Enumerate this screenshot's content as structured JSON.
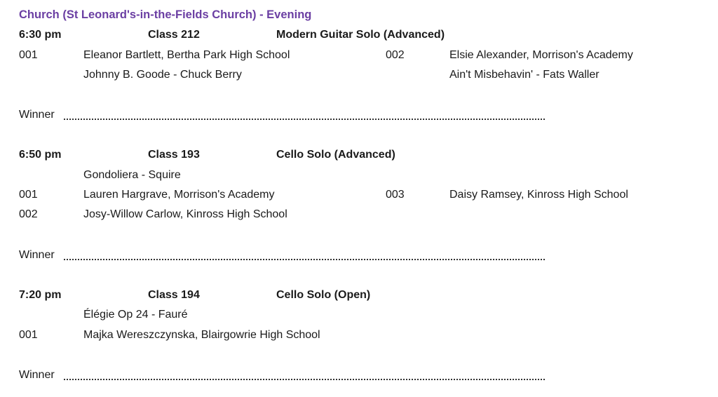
{
  "heading": "Church (St Leonard's-in-the-Fields Church) - Evening",
  "accent_color": "#6b3fa3",
  "winner_label": "Winner",
  "sessions": [
    {
      "time": "6:30 pm",
      "class": "Class 212",
      "title": "Modern Guitar Solo (Advanced)",
      "entries": [
        {
          "num": "001",
          "name": "Eleanor Bartlett, Bertha Park High School",
          "piece": "Johnny B. Goode  -  Chuck Berry"
        },
        {
          "num": "002",
          "name": "Elsie Alexander, Morrison's Academy",
          "piece": "Ain't Misbehavin'  -  Fats Waller"
        }
      ]
    },
    {
      "time": "6:50 pm",
      "class": "Class 193",
      "title": "Cello Solo (Advanced)",
      "piece": "Gondoliera  -  Squire",
      "entries": [
        {
          "num": "001",
          "name": "Lauren Hargrave, Morrison's Academy"
        },
        {
          "num": "003",
          "name": "Daisy Ramsey, Kinross High School"
        },
        {
          "num": "002",
          "name": "Josy-Willow Carlow, Kinross High School"
        }
      ]
    },
    {
      "time": "7:20 pm",
      "class": "Class 194",
      "title": "Cello Solo (Open)",
      "piece": "Élégie Op 24  -  Fauré",
      "entries": [
        {
          "num": "001",
          "name": "Majka Wereszczynska, Blairgowrie High School"
        }
      ]
    }
  ]
}
